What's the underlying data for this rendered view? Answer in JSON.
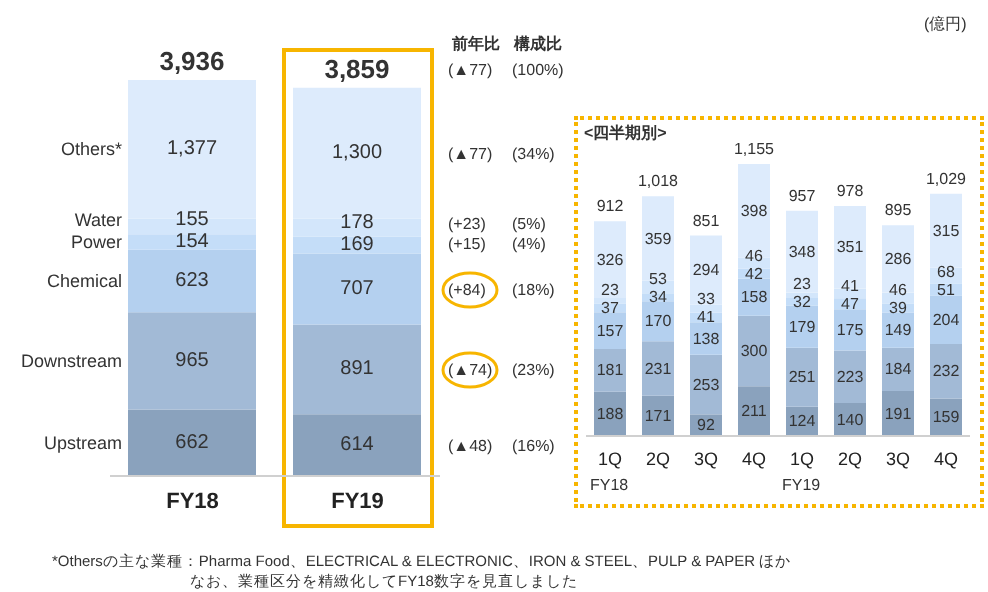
{
  "chart_data": [
    {
      "type": "bar",
      "stacked": true,
      "categories": [
        "FY18",
        "FY19"
      ],
      "data_labels": true,
      "totals": [
        "3,936",
        "3,859"
      ],
      "series": [
        {
          "name": "Upstream",
          "color": "#8aa2bd",
          "values": [
            662,
            614
          ]
        },
        {
          "name": "Downstream",
          "color": "#a2bad6",
          "values": [
            965,
            891
          ]
        },
        {
          "name": "Chemical",
          "color": "#b4d0ef",
          "values": [
            623,
            707
          ]
        },
        {
          "name": "Power",
          "color": "#c4ddf8",
          "values": [
            154,
            169
          ]
        },
        {
          "name": "Water",
          "color": "#d3e6fb",
          "values": [
            155,
            178
          ]
        },
        {
          "name": "Others*",
          "color": "#ddebfc",
          "values": [
            1377,
            1300
          ],
          "value_labels": [
            "1,377",
            "1,300"
          ]
        }
      ],
      "annotations": [
        "(億円)",
        "前年比",
        "構成比",
        "(▲77)",
        "(100%)",
        "(▲77)",
        "(34%)",
        "(+23)",
        "(5%)",
        "(+15)",
        "(4%)",
        "(+84)",
        "(18%)",
        "(▲74)",
        "(23%)",
        "(▲48)",
        "(16%)",
        "*Othersの主な業種：Pharma Food、ELECTRICAL & ELECTRONIC、IRON & STEEL、PULP & PAPER ほか",
        "なお、業種区分を精緻化してFY18数字を見直しました"
      ]
    },
    {
      "type": "bar",
      "stacked": true,
      "title": "<四半期別>",
      "categories": [
        "1Q",
        "2Q",
        "3Q",
        "4Q",
        "1Q",
        "2Q",
        "3Q",
        "4Q"
      ],
      "data_labels": true,
      "totals": [
        "912",
        "1,018",
        "851",
        "1,155",
        "957",
        "978",
        "895",
        "1,029"
      ],
      "series": [
        {
          "color": "#8aa2bd",
          "values": [
            188,
            171,
            92,
            211,
            124,
            140,
            191,
            159
          ]
        },
        {
          "color": "#a2bad6",
          "values": [
            181,
            231,
            253,
            300,
            251,
            223,
            184,
            232
          ]
        },
        {
          "color": "#b4d0ef",
          "values": [
            157,
            170,
            138,
            158,
            179,
            175,
            149,
            204
          ]
        },
        {
          "color": "#c4ddf8",
          "values": [
            37,
            34,
            41,
            42,
            32,
            47,
            39,
            51
          ]
        },
        {
          "color": "#d3e6fb",
          "values": [
            23,
            53,
            33,
            46,
            23,
            41,
            46,
            68
          ]
        },
        {
          "color": "#ddebfc",
          "values": [
            326,
            359,
            294,
            398,
            348,
            351,
            286,
            315
          ]
        }
      ],
      "annotations": [
        "FY18",
        "FY19"
      ]
    }
  ]
}
